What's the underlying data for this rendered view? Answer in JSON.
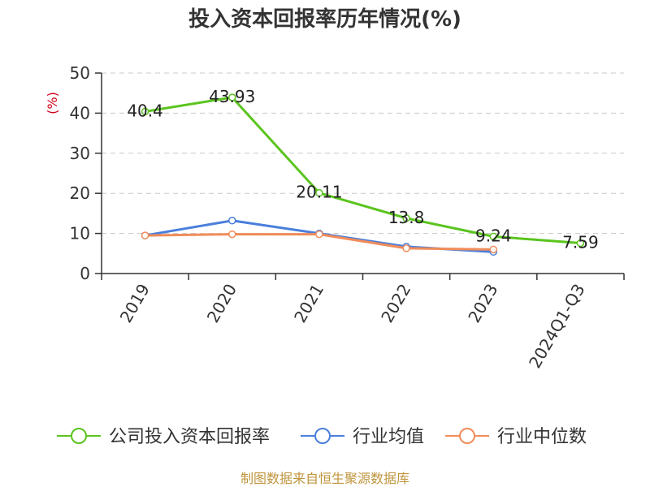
{
  "chart_data": {
    "type": "line",
    "title": "投入资本回报率历年情况(%)",
    "ylabel": "(%)",
    "categories": [
      "2019",
      "2020",
      "2021",
      "2022",
      "2023",
      "2024Q1-Q3"
    ],
    "ylim": [
      0,
      50
    ],
    "yticks": [
      "0",
      "10",
      "20",
      "30",
      "40",
      "50"
    ],
    "grid": true,
    "legend_position": "bottom",
    "series": [
      {
        "name": "公司投入资本回报率",
        "color": "#5ac41e",
        "values": [
          40.4,
          43.93,
          20.11,
          13.8,
          9.24,
          7.59
        ],
        "labels": [
          "40.4",
          "43.93",
          "20.11",
          "13.8",
          "9.24",
          "7.59"
        ]
      },
      {
        "name": "行业均值",
        "color": "#4a7fdc",
        "values": [
          9.5,
          13.2,
          10.0,
          6.7,
          5.4,
          null
        ]
      },
      {
        "name": "行业中位数",
        "color": "#f08c5a",
        "values": [
          9.5,
          9.8,
          9.8,
          6.3,
          6.0,
          null
        ]
      }
    ],
    "source": "制图数据来自恒生聚源数据库"
  }
}
